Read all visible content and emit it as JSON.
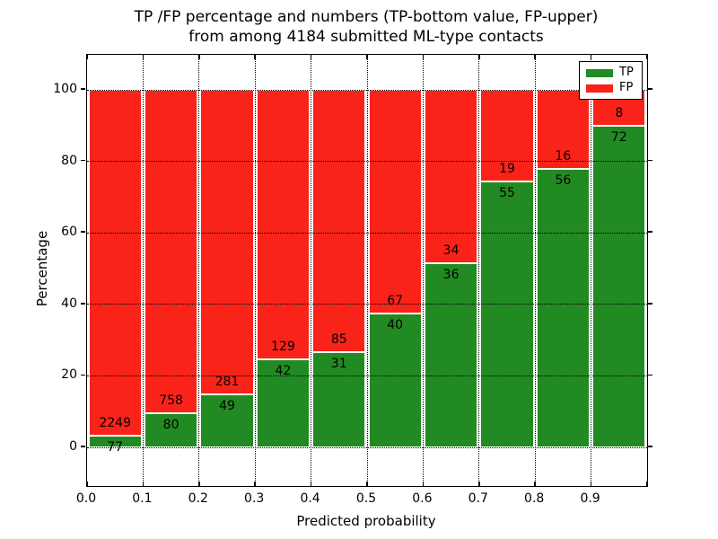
{
  "chart_data": {
    "type": "bar",
    "stacked": true,
    "normalized_to_percent": true,
    "title_line1": "TP /FP percentage and numbers (TP-bottom value, FP-upper)",
    "title_line2": "from among 4184 submitted ML-type contacts",
    "xlabel": "Predicted probability",
    "ylabel": "Percentage",
    "xtick_labels": [
      "0.0",
      "0.1",
      "0.2",
      "0.3",
      "0.4",
      "0.5",
      "0.6",
      "0.7",
      "0.8",
      "0.9"
    ],
    "ytick_values": [
      0,
      20,
      40,
      60,
      80,
      100
    ],
    "xlim": [
      0.0,
      1.0
    ],
    "ylim": [
      -10.8,
      109.8
    ],
    "grid": true,
    "bin_width": 0.1,
    "categories": [
      "0.0-0.1",
      "0.1-0.2",
      "0.2-0.3",
      "0.3-0.4",
      "0.4-0.5",
      "0.5-0.6",
      "0.6-0.7",
      "0.7-0.8",
      "0.8-0.9",
      "0.9-1.0"
    ],
    "series": [
      {
        "name": "TP",
        "color": "#228a22",
        "values": [
          77,
          80,
          49,
          42,
          31,
          40,
          36,
          55,
          56,
          72
        ]
      },
      {
        "name": "FP",
        "color": "#fa2319",
        "values": [
          2249,
          758,
          281,
          129,
          85,
          67,
          34,
          19,
          16,
          8
        ]
      }
    ],
    "tp_percent": [
      3.3,
      9.5,
      14.8,
      24.6,
      26.7,
      37.4,
      51.4,
      74.3,
      77.8,
      90.0
    ],
    "total_contacts": 4184,
    "legend": {
      "position": "upper right",
      "items": [
        {
          "label": "TP",
          "color": "#228a22"
        },
        {
          "label": "FP",
          "color": "#fa2319"
        }
      ]
    },
    "colors": {
      "tp": "#228a22",
      "fp": "#fa2319",
      "grid": "#000000",
      "background": "#ffffff",
      "text": "#000000"
    }
  }
}
